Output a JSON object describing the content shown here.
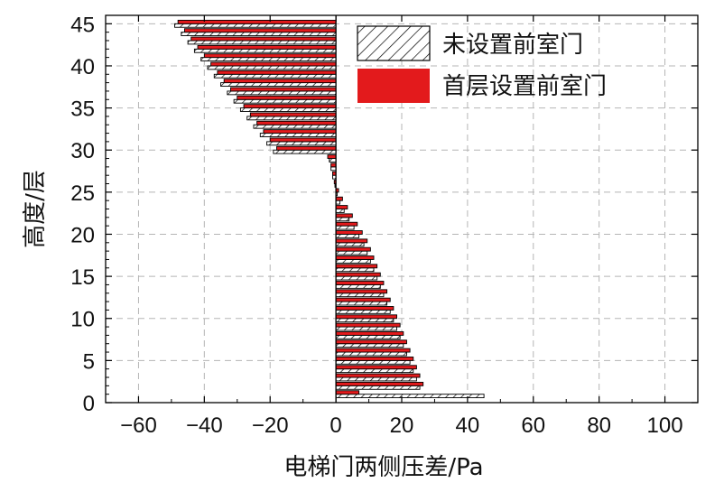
{
  "chart_data": {
    "type": "bar",
    "orientation": "horizontal",
    "xlabel": "电梯门两侧压差/Pa",
    "ylabel": "高度/层",
    "xlim": [
      -70,
      110
    ],
    "ylim": [
      0,
      46
    ],
    "xticks": [
      -60,
      -40,
      -20,
      0,
      20,
      40,
      60,
      80,
      100
    ],
    "yticks": [
      0,
      5,
      10,
      15,
      20,
      25,
      30,
      35,
      40,
      45
    ],
    "xtick_labels": [
      "−60",
      "−40",
      "−20",
      "0",
      "20",
      "40",
      "60",
      "80",
      "100"
    ],
    "ytick_labels": [
      "0",
      "5",
      "10",
      "15",
      "20",
      "25",
      "30",
      "35",
      "40",
      "45"
    ],
    "grid": true,
    "legend_position": "top-right",
    "floors": [
      1,
      2,
      3,
      4,
      5,
      6,
      7,
      8,
      9,
      10,
      11,
      12,
      13,
      14,
      15,
      16,
      17,
      18,
      19,
      20,
      21,
      22,
      23,
      24,
      25,
      26,
      27,
      28,
      29,
      30,
      31,
      32,
      33,
      34,
      35,
      36,
      37,
      38,
      39,
      40,
      41,
      42,
      43,
      44,
      45
    ],
    "series": [
      {
        "name": "未设置前室门",
        "pattern": "hatch",
        "color": "#000000",
        "values": [
          45,
          25.5,
          24.5,
          23.5,
          22.5,
          21.5,
          20.5,
          19.5,
          18.5,
          17.5,
          16.5,
          15.5,
          14.5,
          13.5,
          12.5,
          11.5,
          10.5,
          9.5,
          8.5,
          7.0,
          5.5,
          4.0,
          2.5,
          1.2,
          0.4,
          -0.3,
          -1.0,
          -1.5,
          -2.0,
          -19.0,
          -21.0,
          -23.0,
          -25.0,
          -27.0,
          -29.0,
          -31.0,
          -33.0,
          -35.0,
          -37.0,
          -39.0,
          -41.0,
          -43.0,
          -45.0,
          -47.0,
          -49.0
        ]
      },
      {
        "name": "首层设置前室门",
        "pattern": "solid",
        "color": "#e31a1c",
        "values": [
          7.0,
          26.5,
          25.5,
          24.5,
          23.5,
          22.5,
          21.5,
          20.5,
          19.5,
          18.5,
          17.5,
          16.5,
          15.5,
          14.5,
          13.5,
          12.5,
          11.5,
          10.5,
          9.5,
          8.0,
          6.5,
          5.0,
          3.5,
          2.0,
          0.8,
          -0.5,
          -1.0,
          -1.5,
          -2.5,
          -18.0,
          -20.0,
          -22.0,
          -24.0,
          -26.0,
          -28.0,
          -30.0,
          -32.0,
          -34.0,
          -36.0,
          -38.0,
          -40.0,
          -42.0,
          -44.0,
          -46.0,
          -48.0
        ]
      }
    ]
  }
}
